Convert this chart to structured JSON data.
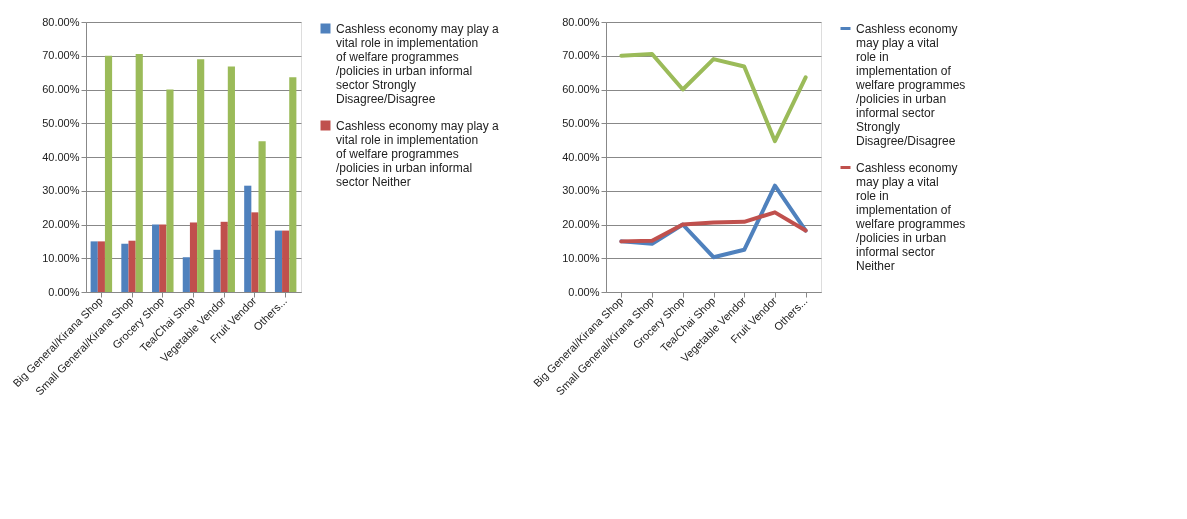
{
  "chart_data": [
    {
      "type": "bar",
      "categories": [
        "Big General/Kirana Shop",
        "Small General/Kirana Shop",
        "Grocery Shop",
        "Tea/Chai Shop",
        "Vegetable Vendor",
        "Fruit Vendor",
        "Others..."
      ],
      "series": [
        {
          "name": "Cashless economy may play a vital role in implementation of welfare programmes /policies in urban informal sector Strongly Disagree/Disagree",
          "color": "#4f81bd",
          "values": [
            15,
            14.3,
            20,
            10.3,
            12.5,
            31.5,
            18.2
          ]
        },
        {
          "name": "Cashless economy may play a vital role in implementation of welfare programmes /policies in urban informal sector Neither",
          "color": "#c0504d",
          "values": [
            15,
            15.2,
            20,
            20.6,
            20.8,
            23.6,
            18.2
          ]
        },
        {
          "color": "#9bbb59",
          "values": [
            70,
            70.5,
            60,
            69,
            66.8,
            44.7,
            63.6
          ]
        }
      ],
      "ylim": [
        0,
        80
      ],
      "yticks": [
        {
          "value": 0,
          "label": "0.00%"
        },
        {
          "value": 10,
          "label": "10.00%"
        },
        {
          "value": 20,
          "label": "20.00%"
        },
        {
          "value": 30,
          "label": "30.00%"
        },
        {
          "value": 40,
          "label": "40.00%"
        },
        {
          "value": 50,
          "label": "50.00%"
        },
        {
          "value": 60,
          "label": "60.00%"
        },
        {
          "value": 70,
          "label": "70.00%"
        },
        {
          "value": 80,
          "label": "80.00%"
        }
      ],
      "grid": "y",
      "legend": "right"
    },
    {
      "type": "line",
      "categories": [
        "Big General/Kirana Shop",
        "Small General/Kirana Shop",
        "Grocery Shop",
        "Tea/Chai Shop",
        "Vegetable Vendor",
        "Fruit Vendor",
        "Others..."
      ],
      "series": [
        {
          "name": "Cashless economy may play a vital role in implementation of welfare programmes /policies in urban informal sector Strongly Disagree/Disagree",
          "color": "#4f81bd",
          "values": [
            15,
            14.3,
            20,
            10.3,
            12.5,
            31.5,
            18.2
          ]
        },
        {
          "name": "Cashless economy may play a vital role in implementation of welfare programmes /policies in urban informal sector Neither",
          "color": "#c0504d",
          "values": [
            15,
            15.2,
            20,
            20.6,
            20.8,
            23.6,
            18.2
          ]
        },
        {
          "color": "#9bbb59",
          "values": [
            70,
            70.5,
            60,
            69,
            66.8,
            44.7,
            63.6
          ]
        }
      ],
      "ylim": [
        0,
        80
      ],
      "yticks": [
        {
          "value": 0,
          "label": "0.00%"
        },
        {
          "value": 10,
          "label": "10.00%"
        },
        {
          "value": 20,
          "label": "20.00%"
        },
        {
          "value": 30,
          "label": "30.00%"
        },
        {
          "value": 40,
          "label": "40.00%"
        },
        {
          "value": 50,
          "label": "50.00%"
        },
        {
          "value": 60,
          "label": "60.00%"
        },
        {
          "value": 70,
          "label": "70.00%"
        },
        {
          "value": 80,
          "label": "80.00%"
        }
      ],
      "grid": "y",
      "legend": "right",
      "marker": "none",
      "line_style": "solid"
    }
  ]
}
